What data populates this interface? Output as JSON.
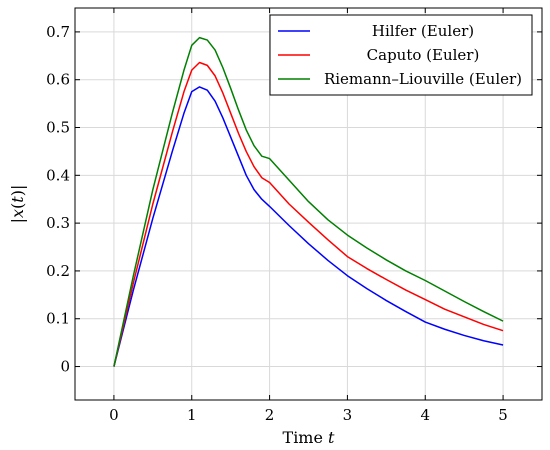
{
  "chart_data": {
    "type": "line",
    "xlabel_main": "Time ",
    "xlabel_var": "t",
    "ylabel_parts": [
      "|",
      "x",
      "(",
      "t",
      ")|"
    ],
    "xlim": [
      -0.5,
      5.5
    ],
    "ylim": [
      -0.07,
      0.75
    ],
    "xticks": [
      0,
      1,
      2,
      3,
      4,
      5
    ],
    "yticks": [
      0,
      0.1,
      0.2,
      0.3,
      0.4,
      0.5,
      0.6,
      0.7
    ],
    "xtick_labels": [
      "0",
      "1",
      "2",
      "3",
      "4",
      "5"
    ],
    "ytick_labels": [
      "0",
      "0.1",
      "0.2",
      "0.3",
      "0.4",
      "0.5",
      "0.6",
      "0.7"
    ],
    "grid": true,
    "legend_position": "top-right",
    "series": [
      {
        "name": "Hilfer (Euler)",
        "color": "#0000ff",
        "x": [
          0,
          0.25,
          0.5,
          0.75,
          0.9,
          1.0,
          1.1,
          1.2,
          1.3,
          1.4,
          1.5,
          1.6,
          1.7,
          1.8,
          1.9,
          2.0,
          2.25,
          2.5,
          2.75,
          3.0,
          3.25,
          3.5,
          3.75,
          4.0,
          4.25,
          4.5,
          4.75,
          5.0
        ],
        "y": [
          0,
          0.16,
          0.31,
          0.45,
          0.53,
          0.575,
          0.585,
          0.578,
          0.555,
          0.52,
          0.48,
          0.44,
          0.4,
          0.37,
          0.35,
          0.335,
          0.295,
          0.257,
          0.222,
          0.19,
          0.163,
          0.138,
          0.115,
          0.093,
          0.078,
          0.065,
          0.054,
          0.045
        ]
      },
      {
        "name": "Caputo (Euler)",
        "color": "#ff0000",
        "x": [
          0,
          0.25,
          0.5,
          0.75,
          0.9,
          1.0,
          1.1,
          1.2,
          1.3,
          1.4,
          1.5,
          1.6,
          1.7,
          1.8,
          1.9,
          2.0,
          2.25,
          2.5,
          2.75,
          3.0,
          3.25,
          3.5,
          3.75,
          4.0,
          4.25,
          4.5,
          4.75,
          5.0
        ],
        "y": [
          0,
          0.175,
          0.34,
          0.49,
          0.575,
          0.62,
          0.636,
          0.63,
          0.608,
          0.572,
          0.53,
          0.488,
          0.45,
          0.418,
          0.395,
          0.385,
          0.34,
          0.302,
          0.265,
          0.23,
          0.205,
          0.182,
          0.16,
          0.14,
          0.12,
          0.104,
          0.088,
          0.075
        ]
      },
      {
        "name": "Riemann–Liouville (Euler)",
        "color": "#008000",
        "x": [
          0,
          0.25,
          0.5,
          0.75,
          0.9,
          1.0,
          1.1,
          1.2,
          1.3,
          1.4,
          1.5,
          1.6,
          1.7,
          1.8,
          1.9,
          2.0,
          2.25,
          2.5,
          2.75,
          3.0,
          3.25,
          3.5,
          3.75,
          4.0,
          4.25,
          4.5,
          4.75,
          5.0
        ],
        "y": [
          0,
          0.19,
          0.37,
          0.53,
          0.62,
          0.672,
          0.688,
          0.683,
          0.662,
          0.625,
          0.582,
          0.537,
          0.495,
          0.462,
          0.44,
          0.435,
          0.39,
          0.345,
          0.307,
          0.275,
          0.248,
          0.223,
          0.2,
          0.18,
          0.158,
          0.136,
          0.115,
          0.095
        ]
      }
    ]
  }
}
